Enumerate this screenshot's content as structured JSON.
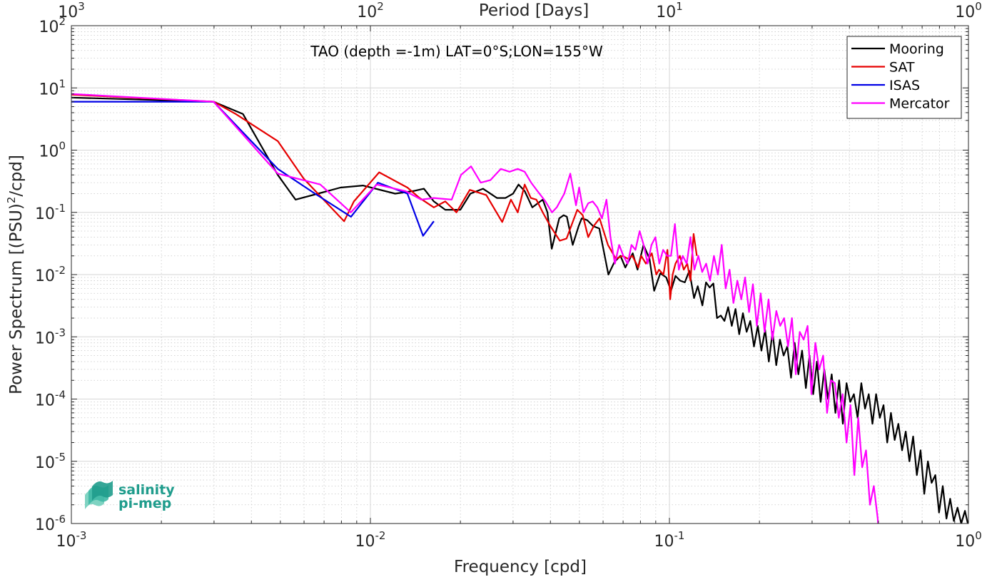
{
  "chart_data": {
    "type": "line",
    "title": "TAO (depth =-1m) LAT=0°S;LON=155°W",
    "xlabel": "Frequency [cpd]",
    "ylabel": "Power Spectrum [(PSU)",
    "ylabel_sup": "2",
    "ylabel_tail": "/cpd]",
    "top_xlabel": "Period [Days]",
    "x_scale": "log",
    "y_scale": "log",
    "xlim": [
      0.001,
      1
    ],
    "ylim": [
      1e-06,
      100
    ],
    "grid": true,
    "minor_grid": true,
    "legend_position": "top-right",
    "x_ticks": [
      {
        "value": 0.001,
        "base": "10",
        "exp": "-3"
      },
      {
        "value": 0.01,
        "base": "10",
        "exp": "-2"
      },
      {
        "value": 0.1,
        "base": "10",
        "exp": "-1"
      },
      {
        "value": 1,
        "base": "10",
        "exp": "0"
      }
    ],
    "top_ticks": [
      {
        "value": 0.001,
        "base": "10",
        "exp": "3"
      },
      {
        "value": 0.01,
        "base": "10",
        "exp": "2"
      },
      {
        "value": 0.1,
        "base": "10",
        "exp": "1"
      },
      {
        "value": 1,
        "base": "10",
        "exp": "0"
      }
    ],
    "y_ticks": [
      {
        "value": 1e-06,
        "base": "10",
        "exp": "-6"
      },
      {
        "value": 1e-05,
        "base": "10",
        "exp": "-5"
      },
      {
        "value": 0.0001,
        "base": "10",
        "exp": "-4"
      },
      {
        "value": 0.001,
        "base": "10",
        "exp": "-3"
      },
      {
        "value": 0.01,
        "base": "10",
        "exp": "-2"
      },
      {
        "value": 0.1,
        "base": "10",
        "exp": "-1"
      },
      {
        "value": 1,
        "base": "10",
        "exp": "0"
      },
      {
        "value": 10,
        "base": "10",
        "exp": "1"
      },
      {
        "value": 100,
        "base": "10",
        "exp": "2"
      }
    ],
    "series": [
      {
        "name": "Mooring",
        "color": "#000000",
        "x": [
          0.001,
          0.00299,
          0.00375,
          0.0049,
          0.00562,
          0.00668,
          0.00794,
          0.00944,
          0.0121,
          0.0139,
          0.0151,
          0.0163,
          0.0178,
          0.0188,
          0.02,
          0.0216,
          0.0238,
          0.0265,
          0.0283,
          0.03,
          0.0313,
          0.0328,
          0.0348,
          0.0377,
          0.0391,
          0.0404,
          0.0428,
          0.0443,
          0.0454,
          0.0475,
          0.0497,
          0.0509,
          0.0531,
          0.0556,
          0.0583,
          0.0625,
          0.0655,
          0.0686,
          0.0712,
          0.0754,
          0.0782,
          0.0819,
          0.0858,
          0.0889,
          0.0932,
          0.0976,
          0.1012,
          0.1048,
          0.1086,
          0.1126,
          0.1166,
          0.1209,
          0.1244,
          0.1289,
          0.1326,
          0.1363,
          0.1403,
          0.1443,
          0.1485,
          0.1528,
          0.1572,
          0.1617,
          0.1663,
          0.1712,
          0.1761,
          0.1812,
          0.1864,
          0.1918,
          0.1974,
          0.2031,
          0.2089,
          0.215,
          0.2212,
          0.2276,
          0.2342,
          0.2409,
          0.2479,
          0.2551,
          0.2624,
          0.27,
          0.2778,
          0.2859,
          0.2941,
          0.3026,
          0.3114,
          0.3204,
          0.3296,
          0.3392,
          0.349,
          0.3591,
          0.3694,
          0.3801,
          0.3911,
          0.4024,
          0.414,
          0.426,
          0.4383,
          0.451,
          0.464,
          0.4774,
          0.4912,
          0.5054,
          0.52,
          0.5351,
          0.5505,
          0.5664,
          0.5828,
          0.5997,
          0.617,
          0.6348,
          0.6532,
          0.6721,
          0.6915,
          0.7115,
          0.732,
          0.7532,
          0.775,
          0.7974,
          0.8204,
          0.8442,
          0.8686,
          0.8937,
          0.9195,
          0.9461,
          0.9734,
          0.995
        ],
        "y": [
          7.0,
          6.0,
          3.8,
          0.4,
          0.16,
          0.2,
          0.25,
          0.27,
          0.2,
          0.22,
          0.24,
          0.15,
          0.11,
          0.11,
          0.11,
          0.2,
          0.24,
          0.17,
          0.17,
          0.2,
          0.28,
          0.22,
          0.12,
          0.16,
          0.1,
          0.026,
          0.08,
          0.09,
          0.085,
          0.03,
          0.06,
          0.08,
          0.075,
          0.06,
          0.055,
          0.01,
          0.016,
          0.02,
          0.013,
          0.022,
          0.012,
          0.03,
          0.018,
          0.0055,
          0.0105,
          0.009,
          0.0055,
          0.0095,
          0.008,
          0.0075,
          0.0115,
          0.0042,
          0.0065,
          0.0032,
          0.0075,
          0.0062,
          0.0072,
          0.002,
          0.0022,
          0.0018,
          0.003,
          0.0015,
          0.0028,
          0.0011,
          0.0024,
          0.0012,
          0.0018,
          0.0007,
          0.0015,
          0.0006,
          0.0013,
          0.0004,
          0.0012,
          0.00035,
          0.0009,
          0.0005,
          0.0007,
          0.00022,
          0.0008,
          0.00025,
          0.0006,
          0.00015,
          0.0005,
          0.00012,
          0.0004,
          9e-05,
          0.0003,
          0.0001,
          0.00025,
          6e-05,
          0.0002,
          4e-05,
          0.00018,
          9e-05,
          0.00012,
          5e-05,
          0.00018,
          7e-05,
          0.00012,
          4e-05,
          0.00012,
          5e-05,
          8e-05,
          2e-05,
          6e-05,
          2.2e-05,
          4e-05,
          1.5e-05,
          3e-05,
          1e-05,
          2.5e-05,
          6e-06,
          1.5e-05,
          3e-06,
          1e-05,
          4.5e-06,
          6e-06,
          1.5e-06,
          4e-06,
          1.2e-06,
          2.5e-06,
          1.1e-06,
          1.8e-06,
          1e-06,
          1.6e-06,
          1e-06
        ]
      },
      {
        "name": "SAT",
        "color": "#e60000",
        "x": [
          0.001,
          0.00299,
          0.00355,
          0.0049,
          0.00598,
          0.00817,
          0.00881,
          0.0107,
          0.0124,
          0.0133,
          0.0146,
          0.0163,
          0.0178,
          0.0194,
          0.0215,
          0.0244,
          0.0276,
          0.0295,
          0.0311,
          0.0328,
          0.0344,
          0.0359,
          0.0377,
          0.04,
          0.043,
          0.0453,
          0.0475,
          0.0492,
          0.0513,
          0.0535,
          0.0558,
          0.0584,
          0.0623,
          0.0662,
          0.0697,
          0.0726,
          0.0752,
          0.0787,
          0.0805,
          0.0834,
          0.0873,
          0.0904,
          0.0923,
          0.0955,
          0.0985,
          0.1006,
          0.1025,
          0.1048,
          0.1084,
          0.1117,
          0.1147,
          0.1176,
          0.1205,
          0.1235
        ],
        "y": [
          7.8,
          6.0,
          3.8,
          1.4,
          0.35,
          0.072,
          0.15,
          0.44,
          0.3,
          0.25,
          0.17,
          0.12,
          0.15,
          0.1,
          0.23,
          0.19,
          0.07,
          0.16,
          0.1,
          0.28,
          0.17,
          0.16,
          0.1,
          0.06,
          0.035,
          0.038,
          0.07,
          0.11,
          0.09,
          0.04,
          0.06,
          0.08,
          0.03,
          0.018,
          0.02,
          0.018,
          0.02,
          0.013,
          0.02,
          0.015,
          0.022,
          0.01,
          0.012,
          0.01,
          0.025,
          0.004,
          0.01,
          0.015,
          0.02,
          0.012,
          0.015,
          0.008,
          0.045,
          0.02
        ]
      },
      {
        "name": "ISAS",
        "color": "#0000e6",
        "x": [
          0.001,
          0.00299,
          0.0049,
          0.00653,
          0.00861,
          0.0106,
          0.0133,
          0.015,
          0.0163
        ],
        "y": [
          6.0,
          6.0,
          0.5,
          0.2,
          0.085,
          0.3,
          0.2,
          0.042,
          0.072
        ]
      },
      {
        "name": "Mercator",
        "color": "#ff00ff",
        "x": [
          0.001,
          0.00299,
          0.0049,
          0.0068,
          0.0086,
          0.0105,
          0.0131,
          0.0148,
          0.0163,
          0.0187,
          0.0201,
          0.0217,
          0.0234,
          0.0252,
          0.0273,
          0.0292,
          0.0311,
          0.0328,
          0.0345,
          0.0362,
          0.0385,
          0.0405,
          0.042,
          0.0445,
          0.0466,
          0.0487,
          0.0499,
          0.0516,
          0.0535,
          0.0554,
          0.0574,
          0.0595,
          0.0616,
          0.0635,
          0.0657,
          0.0679,
          0.0701,
          0.0725,
          0.0747,
          0.077,
          0.0795,
          0.082,
          0.0845,
          0.0871,
          0.0898,
          0.0925,
          0.0953,
          0.0982,
          0.1012,
          0.1043,
          0.1075,
          0.1108,
          0.1142,
          0.1176,
          0.1212,
          0.1249,
          0.1287,
          0.1327,
          0.1367,
          0.1409,
          0.1452,
          0.1496,
          0.1542,
          0.1589,
          0.1637,
          0.1687,
          0.1739,
          0.1791,
          0.1846,
          0.1902,
          0.196,
          0.202,
          0.2082,
          0.2145,
          0.221,
          0.2278,
          0.2347,
          0.2419,
          0.2493,
          0.2569,
          0.2647,
          0.2728,
          0.2811,
          0.2897,
          0.2985,
          0.3076,
          0.317,
          0.3267,
          0.3366,
          0.3469,
          0.3575,
          0.3684,
          0.3796,
          0.3912,
          0.4031,
          0.4154,
          0.428,
          0.4411,
          0.4545,
          0.4684,
          0.4826,
          0.4973,
          0.5
        ],
        "y": [
          8.0,
          6.0,
          0.42,
          0.28,
          0.1,
          0.28,
          0.22,
          0.16,
          0.17,
          0.16,
          0.4,
          0.55,
          0.3,
          0.33,
          0.5,
          0.45,
          0.5,
          0.45,
          0.3,
          0.22,
          0.15,
          0.1,
          0.12,
          0.2,
          0.42,
          0.13,
          0.25,
          0.1,
          0.14,
          0.15,
          0.12,
          0.08,
          0.16,
          0.04,
          0.015,
          0.03,
          0.02,
          0.015,
          0.03,
          0.025,
          0.05,
          0.03,
          0.015,
          0.03,
          0.04,
          0.015,
          0.025,
          0.02,
          0.02,
          0.065,
          0.012,
          0.02,
          0.015,
          0.04,
          0.012,
          0.02,
          0.011,
          0.015,
          0.008,
          0.02,
          0.01,
          0.03,
          0.006,
          0.012,
          0.0035,
          0.008,
          0.004,
          0.009,
          0.0025,
          0.007,
          0.0015,
          0.005,
          0.0012,
          0.004,
          0.0009,
          0.0026,
          0.0015,
          0.002,
          0.0007,
          0.002,
          0.00025,
          0.0012,
          0.0009,
          0.0015,
          0.00012,
          0.0008,
          0.0003,
          0.0005,
          6e-05,
          0.0002,
          0.00018,
          5e-05,
          0.00012,
          2e-05,
          8e-05,
          6e-06,
          5e-05,
          8e-06,
          1.5e-05,
          2e-06,
          4e-06,
          1.2e-06,
          8e-07
        ]
      }
    ]
  },
  "logo": {
    "line1": "salinity",
    "line2": "pi-mep",
    "color": "#1f9c8c"
  }
}
